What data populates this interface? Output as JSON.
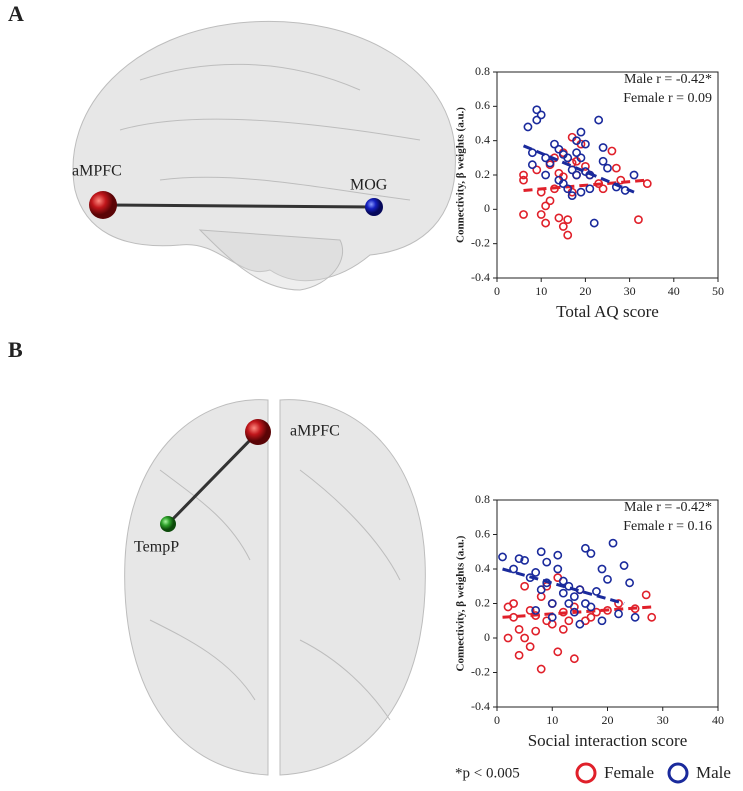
{
  "figure": {
    "panel_labels": [
      "A",
      "B"
    ],
    "nodes_a": [
      "aMPFC",
      "MOG"
    ],
    "nodes_b": [
      "aMPFC",
      "TempP"
    ],
    "note": "*p < 0.005"
  },
  "chart_data": [
    {
      "type": "scatter",
      "xlabel": "Total AQ score",
      "ylabel": "Connectivity, β weights (a.u.)",
      "annotations": [
        "Male r = -0.42*",
        "Female r =  0.09"
      ],
      "xlim": [
        0,
        50
      ],
      "xticks": [
        0,
        10,
        20,
        30,
        40,
        50
      ],
      "ylim": [
        -0.4,
        0.8
      ],
      "yticks": [
        -0.4,
        -0.2,
        0,
        0.2,
        0.4,
        0.6,
        0.8
      ],
      "series": [
        {
          "name": "Female",
          "color": "#e0202a",
          "x": [
            6,
            6,
            6,
            9,
            10,
            10,
            11,
            11,
            12,
            12,
            13,
            13,
            14,
            14,
            15,
            15,
            15,
            16,
            16,
            17,
            17,
            17,
            18,
            18,
            19,
            20,
            21,
            23,
            24,
            26,
            27,
            28,
            32,
            34
          ],
          "values": [
            0.2,
            0.17,
            -0.03,
            0.23,
            0.1,
            -0.03,
            0.02,
            -0.08,
            0.05,
            0.26,
            0.12,
            0.3,
            0.21,
            -0.05,
            0.33,
            0.19,
            -0.1,
            -0.06,
            -0.15,
            0.27,
            0.1,
            0.42,
            0.28,
            0.2,
            0.38,
            0.25,
            0.2,
            0.15,
            0.12,
            0.34,
            0.24,
            0.17,
            -0.06,
            0.15
          ],
          "trend_x": [
            6,
            34
          ],
          "trend_y": [
            0.11,
            0.17
          ]
        },
        {
          "name": "Male",
          "color": "#1a2a9c",
          "x": [
            7,
            8,
            8,
            9,
            9,
            10,
            11,
            11,
            12,
            13,
            14,
            14,
            15,
            15,
            16,
            16,
            17,
            17,
            18,
            18,
            18,
            19,
            19,
            19,
            20,
            20,
            21,
            21,
            22,
            23,
            24,
            24,
            25,
            27,
            29,
            31
          ],
          "values": [
            0.48,
            0.33,
            0.26,
            0.58,
            0.52,
            0.55,
            0.3,
            0.2,
            0.27,
            0.38,
            0.35,
            0.17,
            0.32,
            0.15,
            0.12,
            0.3,
            0.08,
            0.23,
            0.4,
            0.33,
            0.2,
            0.45,
            0.3,
            0.1,
            0.38,
            0.22,
            0.12,
            0.2,
            -0.08,
            0.52,
            0.36,
            0.28,
            0.24,
            0.13,
            0.11,
            0.2
          ],
          "trend_x": [
            6,
            31
          ],
          "trend_y": [
            0.37,
            0.1
          ]
        }
      ]
    },
    {
      "type": "scatter",
      "xlabel": "Social interaction score",
      "ylabel": "Connectivity, β weights (a.u.)",
      "annotations": [
        "Male r = -0.42*",
        "Female r =  0.16"
      ],
      "xlim": [
        0,
        40
      ],
      "xticks": [
        0,
        10,
        20,
        30,
        40
      ],
      "ylim": [
        -0.4,
        0.8
      ],
      "yticks": [
        -0.4,
        -0.2,
        0,
        0.2,
        0.4,
        0.6,
        0.8
      ],
      "series": [
        {
          "name": "Female",
          "color": "#e0202a",
          "x": [
            2,
            2,
            3,
            3,
            4,
            4,
            5,
            5,
            6,
            6,
            7,
            7,
            8,
            8,
            9,
            9,
            10,
            10,
            11,
            11,
            12,
            12,
            13,
            14,
            14,
            15,
            16,
            17,
            18,
            20,
            22,
            25,
            27,
            28
          ],
          "values": [
            0,
            0.18,
            0.12,
            0.2,
            -0.1,
            0.05,
            0.3,
            0,
            0.16,
            -0.05,
            0.13,
            0.04,
            -0.18,
            0.24,
            0.1,
            0.3,
            0.08,
            0.2,
            0.35,
            -0.08,
            0.15,
            0.05,
            0.1,
            -0.12,
            0.18,
            0.28,
            0.1,
            0.12,
            0.15,
            0.16,
            0.2,
            0.17,
            0.25,
            0.12
          ],
          "trend_x": [
            1,
            28
          ],
          "trend_y": [
            0.12,
            0.18
          ]
        },
        {
          "name": "Male",
          "color": "#1a2a9c",
          "x": [
            1,
            3,
            4,
            5,
            6,
            7,
            7,
            8,
            8,
            9,
            9,
            10,
            10,
            11,
            11,
            12,
            12,
            13,
            13,
            14,
            14,
            15,
            15,
            16,
            16,
            17,
            17,
            18,
            19,
            19,
            20,
            21,
            22,
            23,
            24,
            25
          ],
          "values": [
            0.47,
            0.4,
            0.46,
            0.45,
            0.35,
            0.38,
            0.16,
            0.5,
            0.28,
            0.44,
            0.32,
            0.2,
            0.12,
            0.48,
            0.4,
            0.33,
            0.26,
            0.2,
            0.3,
            0.15,
            0.24,
            0.28,
            0.08,
            0.52,
            0.2,
            0.49,
            0.18,
            0.27,
            0.1,
            0.4,
            0.34,
            0.55,
            0.14,
            0.42,
            0.32,
            0.12
          ],
          "trend_x": [
            1,
            23
          ],
          "trend_y": [
            0.4,
            0.2
          ]
        }
      ]
    }
  ]
}
